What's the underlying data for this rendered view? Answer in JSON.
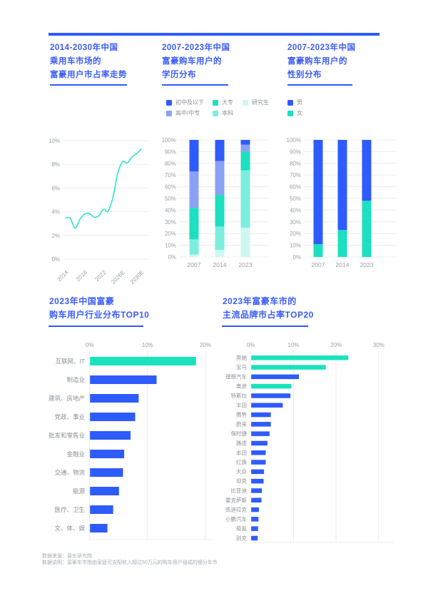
{
  "page": {
    "footer": {
      "source": "数据来源：易车研究院",
      "note": "数据说明：富豪车市指由家庭可支配收入超过50万元的购车用户组成的细分车市"
    }
  },
  "style": {
    "accent_blue": "#2e5bfb",
    "title_blue": "#3a5cfb",
    "teal": "#19e3bd",
    "axis_text": "#9aa0a6",
    "grid_line": "#ececec",
    "label_text": "#8a9099"
  },
  "sections": [
    {
      "title_lines": [
        "2014-2030年中国",
        "乘用车市场的",
        "富豪用户市占率走势"
      ]
    },
    {
      "title_lines": [
        "2007-2023年中国",
        "富豪购车用户的",
        "学历分布"
      ],
      "legend": [
        {
          "label": "初中及以下",
          "color": "#2e5bfb"
        },
        {
          "label": "高中/中专",
          "color": "#8ba1f5"
        },
        {
          "label": "大专",
          "color": "#1de0c0"
        },
        {
          "label": "本科",
          "color": "#7ceedd"
        },
        {
          "label": "研究生",
          "color": "#cdf8f0"
        }
      ]
    },
    {
      "title_lines": [
        "2007-2023年中国",
        "富豪购车用户的",
        "性别分布"
      ],
      "legend": [
        {
          "label": "男",
          "color": "#2e5bfb"
        },
        {
          "label": "女",
          "color": "#1de0c0"
        }
      ]
    },
    {
      "title_lines": [
        "2023年中国富豪",
        "购车用户行业分布TOP10"
      ]
    },
    {
      "title_lines": [
        "2023年富豪车市的",
        "主流品牌市占率TOP20"
      ]
    }
  ],
  "chart_data": [
    {
      "type": "line",
      "title": "2014-2030年中国乘用车市场的富豪用户市占率走势",
      "x": [
        2014,
        2015,
        2016,
        2017,
        2018,
        2019,
        2020,
        2021,
        2022,
        2023,
        2024,
        2025,
        2026,
        2027,
        2028,
        2029,
        2030
      ],
      "values": [
        3.45,
        3.45,
        2.6,
        3.35,
        3.8,
        3.85,
        3.55,
        3.65,
        4.2,
        4.05,
        5.2,
        7.2,
        8.2,
        8.1,
        8.6,
        8.9,
        9.3
      ],
      "unit": "%",
      "ylim": [
        0,
        10
      ],
      "yticks": [
        0,
        2,
        4,
        6,
        8,
        10
      ],
      "x_tick_labels": [
        "2014",
        "2018",
        "2022",
        "2026E",
        "2030E"
      ],
      "x_tick_indices": [
        0,
        4,
        8,
        12,
        16
      ],
      "line_color": "#2ae8cd",
      "grid": true,
      "legend_position": "none"
    },
    {
      "type": "bar",
      "subtype": "stacked",
      "title": "2007-2023年中国富豪购车用户的学历分布",
      "categories": [
        "2007",
        "2014",
        "2023"
      ],
      "unit": "%",
      "ylim": [
        0,
        100
      ],
      "series_bottom_to_top": [
        {
          "name": "研究生",
          "color": "#cdf8f0",
          "values": [
            2,
            6,
            25
          ]
        },
        {
          "name": "本科",
          "color": "#7ceedd",
          "values": [
            13,
            20,
            49
          ]
        },
        {
          "name": "大专",
          "color": "#1de0c0",
          "values": [
            27,
            27,
            16
          ]
        },
        {
          "name": "高中/中专",
          "color": "#8ba1f5",
          "values": [
            31,
            29,
            6
          ]
        },
        {
          "name": "初中及以下",
          "color": "#2e5bfb",
          "values": [
            27,
            18,
            4
          ]
        }
      ],
      "legend_position": "top"
    },
    {
      "type": "bar",
      "subtype": "stacked",
      "title": "2007-2023年中国富豪购车用户的性别分布",
      "categories": [
        "2007",
        "2014",
        "2023"
      ],
      "unit": "%",
      "ylim": [
        0,
        100
      ],
      "series_bottom_to_top": [
        {
          "name": "女",
          "color": "#1de0c0",
          "values": [
            11,
            23,
            48
          ]
        },
        {
          "name": "男",
          "color": "#2e5bfb",
          "values": [
            89,
            77,
            52
          ]
        }
      ],
      "legend_position": "top"
    },
    {
      "type": "bar",
      "orientation": "horizontal",
      "title": "2023年中国富豪购车用户行业分布TOP10",
      "categories": [
        "互联网、IT",
        "制造业",
        "建筑、房地产",
        "党政、事业",
        "批发和零售业",
        "金融业",
        "交通、物流",
        "能源",
        "医疗、卫生",
        "文、体、娱"
      ],
      "values": [
        18.3,
        11.5,
        8.4,
        7.8,
        7.0,
        5.9,
        5.7,
        5.0,
        4.0,
        3.0
      ],
      "unit": "%",
      "xticks": [
        0,
        10,
        20
      ],
      "xlim": [
        0,
        22
      ],
      "bar_color": "#2e5bfb",
      "highlight_color": "#19e3bd",
      "highlight_indices": [
        0
      ]
    },
    {
      "type": "bar",
      "orientation": "horizontal",
      "title": "2023年富豪车市的主流品牌市占率TOP20",
      "categories": [
        "奔驰",
        "宝马",
        "理想汽车",
        "奥迪",
        "特斯拉",
        "丰田",
        "腾势",
        "蔚来",
        "保时捷",
        "路虎",
        "本田",
        "红旗",
        "大众",
        "坦克",
        "比亚迪",
        "雷克萨斯",
        "凯迪拉克",
        "小鹏汽车",
        "极氪",
        "别克"
      ],
      "values": [
        22.8,
        17.5,
        11.2,
        9.4,
        9.2,
        7.4,
        4.6,
        4.6,
        4.3,
        3.8,
        3.4,
        3.4,
        3.0,
        2.9,
        2.5,
        2.4,
        1.8,
        1.7,
        1.6,
        1.5
      ],
      "unit": "%",
      "xticks": [
        0,
        10,
        20,
        30
      ],
      "xlim": [
        0,
        33
      ],
      "bar_color": "#2e5bfb",
      "highlight_color": "#19e3bd",
      "highlight_indices": [
        0,
        1,
        3
      ]
    }
  ]
}
